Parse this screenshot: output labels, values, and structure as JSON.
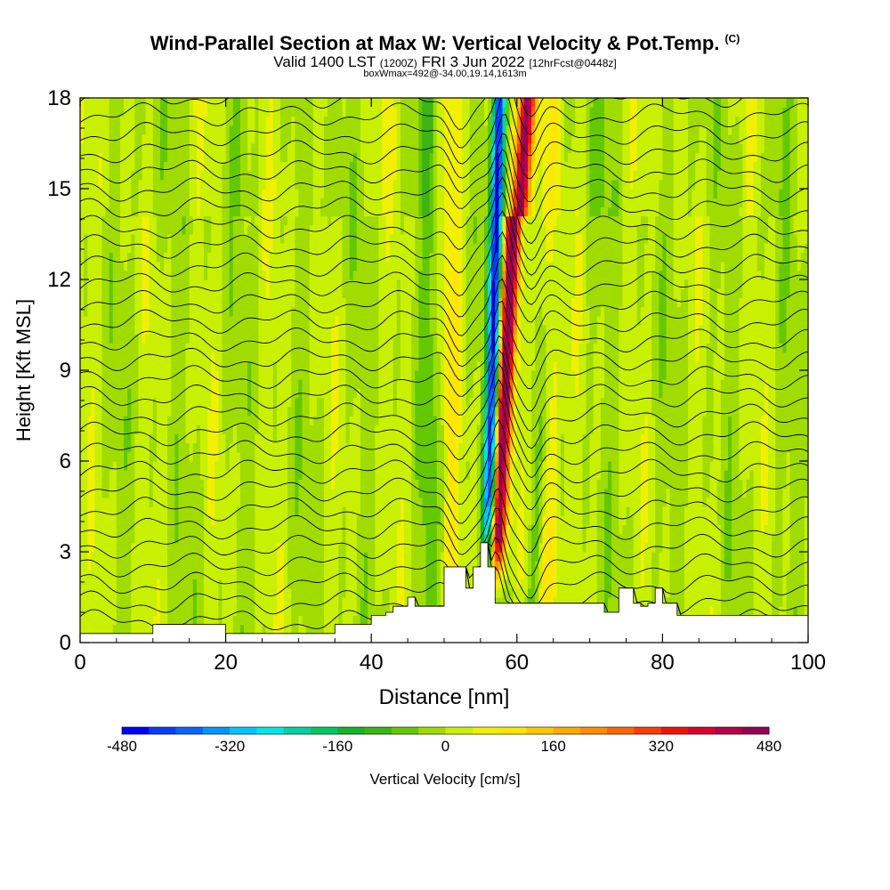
{
  "header": {
    "title": "Wind-Parallel Section at Max W: Vertical Velocity & Pot.Temp.",
    "copyright": "(C)",
    "valid_prefix": "Valid 1400 LST",
    "valid_utc": "(1200Z)",
    "valid_date": "FRI 3 Jun 2022",
    "forecast": "[12hrFcst@0448z]",
    "box_info": "boxWmax=492@-34.00,19.14,1613m"
  },
  "chart_data": {
    "type": "heatmap",
    "title": "Wind-Parallel Section at Max W: Vertical Velocity & Pot.Temp.",
    "xlabel": "Distance [nm]",
    "ylabel": "Height [Kft MSL]",
    "xlim": [
      0,
      100
    ],
    "ylim": [
      0,
      18
    ],
    "xticks": [
      0,
      20,
      40,
      60,
      80,
      100
    ],
    "yticks": [
      0,
      3,
      6,
      9,
      12,
      15,
      18
    ],
    "colorbar": {
      "label": "Vertical Velocity [cm/s]",
      "range": [
        -480,
        480
      ],
      "tick_labels": [
        "-480",
        "-320",
        "-160",
        "0",
        "160",
        "320",
        "480"
      ],
      "colors": [
        "#0000ff",
        "#0a3cff",
        "#0a64ff",
        "#0096ff",
        "#00c8ff",
        "#00e6e6",
        "#00d2a0",
        "#00c864",
        "#14b428",
        "#3cb414",
        "#64c800",
        "#a0dc00",
        "#c8f000",
        "#f0f000",
        "#ffe600",
        "#ffc800",
        "#ffaa00",
        "#ff8c00",
        "#ff6400",
        "#ff3c00",
        "#f01400",
        "#dc0032",
        "#b4004b",
        "#960050"
      ]
    },
    "updraft_core": {
      "x_range_nm": [
        56,
        62
      ],
      "max_w_cm_s": 492
    },
    "downdraft_core": {
      "x_range_nm": [
        54,
        58
      ],
      "min_w_cm_s": -440
    },
    "terrain_kft": {
      "x": [
        0,
        1,
        2,
        9,
        10,
        19,
        20,
        34,
        35,
        40,
        41,
        42,
        43,
        44,
        45,
        46,
        47,
        48,
        49,
        50,
        51,
        52,
        53,
        54,
        55,
        56,
        57,
        58,
        59,
        60,
        61,
        62,
        63,
        64,
        65,
        66,
        67,
        68,
        69,
        70,
        71,
        72,
        73,
        74,
        75,
        76,
        77,
        78,
        79,
        80,
        81,
        82,
        88,
        89,
        90,
        100
      ],
      "y": [
        0.3,
        0.3,
        0.3,
        0.3,
        0.6,
        0.6,
        0.3,
        0.3,
        0.6,
        0.9,
        0.9,
        1.0,
        1.2,
        1.2,
        1.5,
        1.2,
        1.2,
        1.2,
        1.2,
        2.5,
        2.5,
        2.5,
        1.8,
        2.5,
        3.3,
        2.5,
        1.3,
        1.3,
        1.3,
        1.3,
        1.3,
        1.3,
        1.3,
        1.3,
        1.3,
        1.3,
        1.3,
        1.3,
        1.3,
        1.3,
        1.3,
        1.0,
        1.0,
        1.8,
        1.8,
        1.3,
        1.2,
        1.3,
        1.8,
        1.3,
        1.3,
        0.9,
        0.9,
        0.9,
        0.9,
        0.9
      ]
    }
  }
}
